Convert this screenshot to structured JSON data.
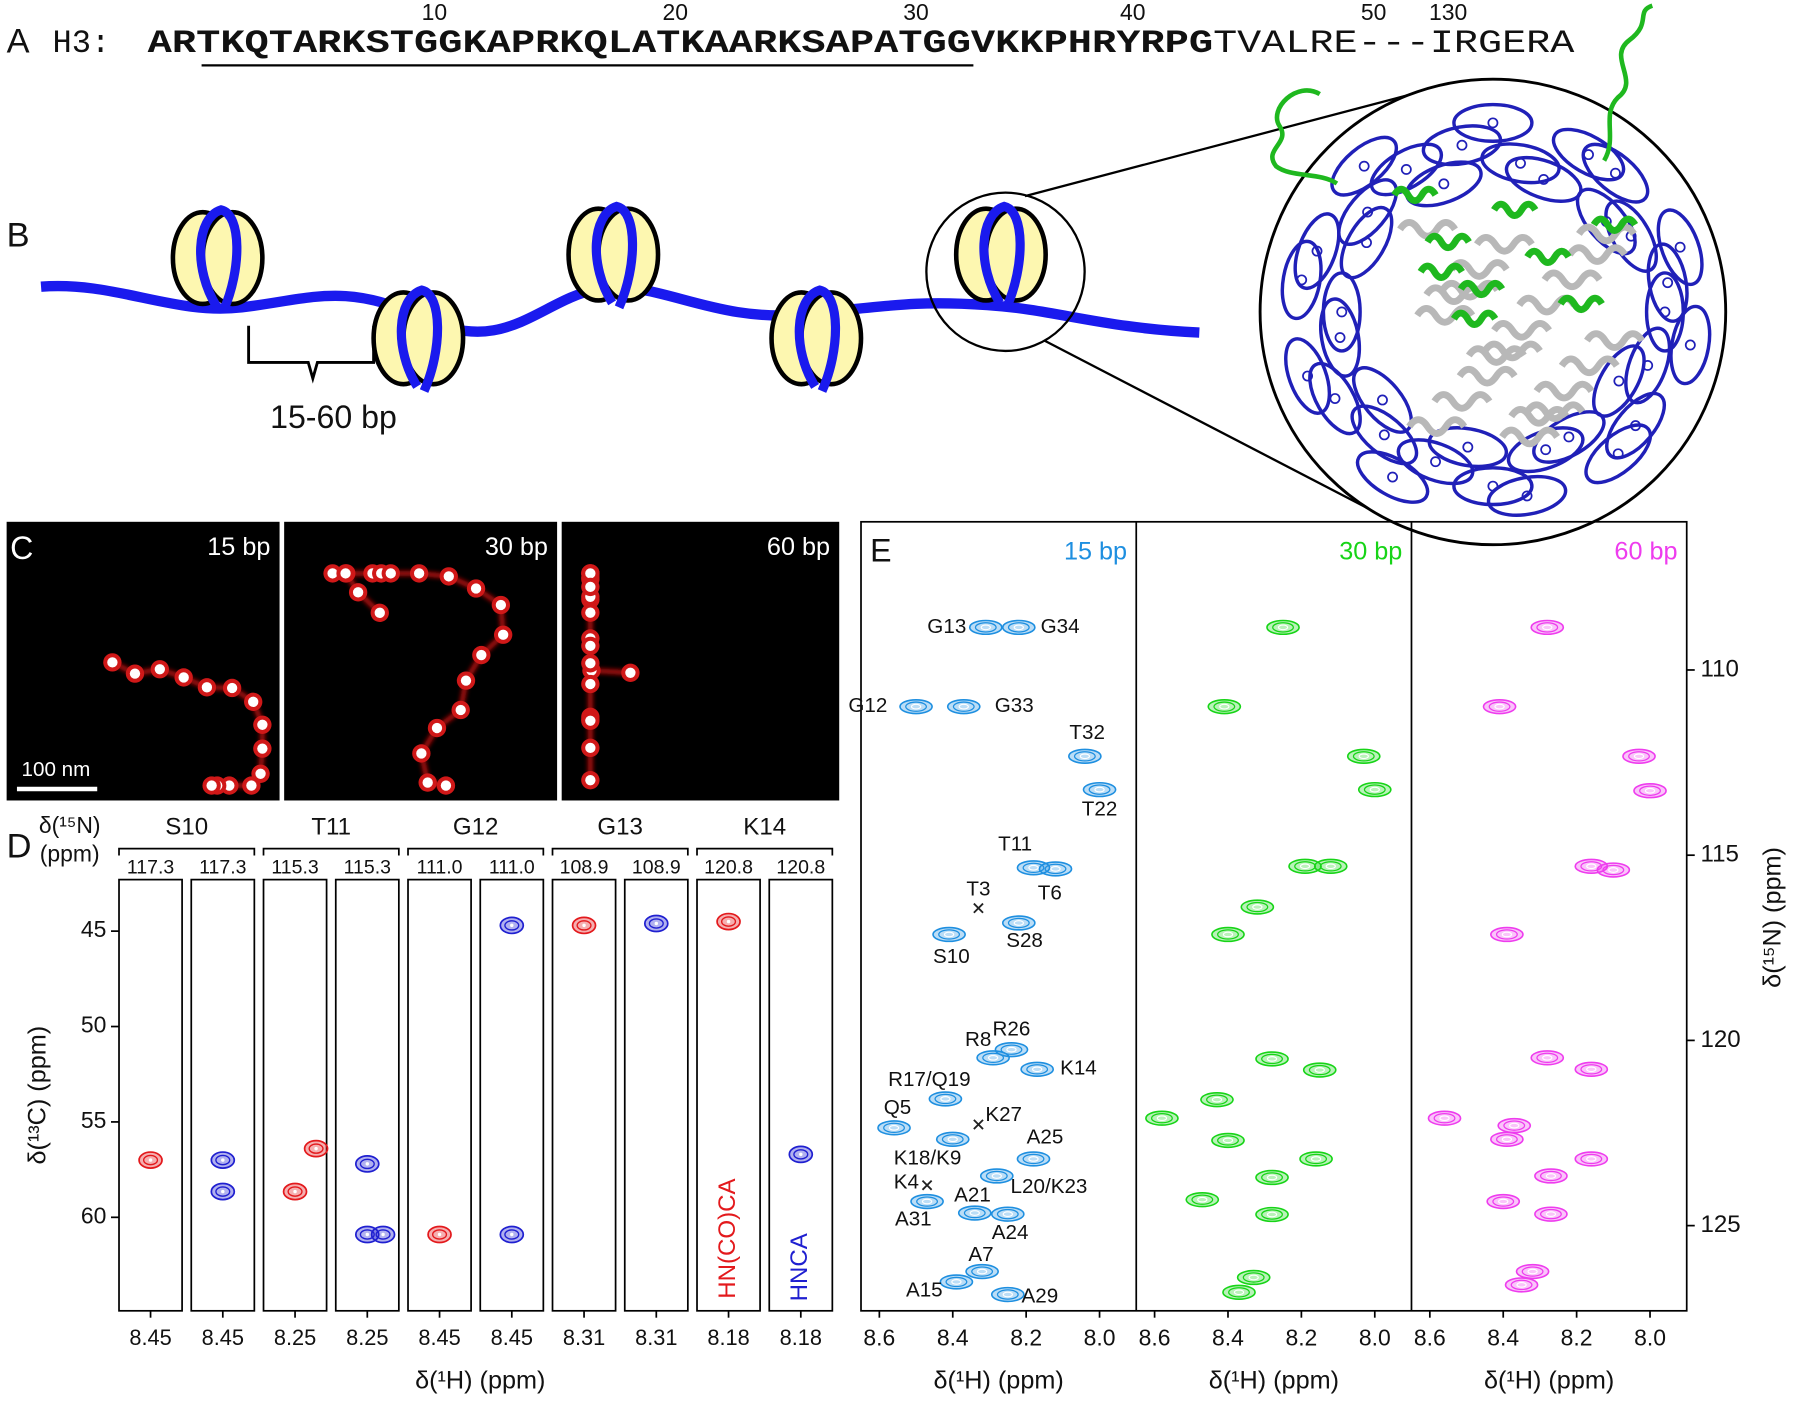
{
  "panel_a": {
    "label": "A",
    "protein": "H3:",
    "sequence_bold": "ARTKQTARKSTGGKAPRKQLATKAARKSAPATGGVKKPHRYRPG",
    "sequence_plain": "TVALRE---IRGERA",
    "residue_numbers": [
      10,
      20,
      30,
      40,
      50,
      130
    ]
  },
  "panel_b": {
    "label": "B",
    "linker_length": "15-60 bp"
  },
  "panel_c": {
    "label": "C",
    "images": [
      "15 bp",
      "30 bp",
      "60 bp"
    ],
    "scale_bar": "100 nm"
  },
  "panel_d": {
    "label": "D",
    "n_label": "δ(¹⁵N)",
    "n_unit": "(ppm)",
    "y_label": "δ(¹³C) (ppm)",
    "x_label": "δ(¹H) (ppm)",
    "ylim": [
      42.3,
      64.9
    ],
    "yticks": [
      45,
      50,
      55,
      60
    ],
    "experiments": [
      {
        "name": "HN(CO)CA",
        "color": "#e3191c"
      },
      {
        "name": "HNCA",
        "color": "#1f1fd0"
      }
    ],
    "residues": [
      {
        "name": "S10",
        "strips": [
          {
            "n": 117.3,
            "h": 8.45,
            "xlim": [
              8.51,
              8.39
            ],
            "peaks": [
              {
                "h": 8.45,
                "c": 57.0
              }
            ]
          },
          {
            "n": 117.3,
            "h": 8.45,
            "xlim": [
              8.51,
              8.39
            ],
            "peaks": [
              {
                "h": 8.45,
                "c": 58.65
              },
              {
                "h": 8.45,
                "c": 57.0
              }
            ]
          }
        ]
      },
      {
        "name": "T11",
        "strips": [
          {
            "n": 115.3,
            "h": 8.25,
            "xlim": [
              8.31,
              8.19
            ],
            "peaks": [
              {
                "h": 8.25,
                "c": 58.65
              },
              {
                "h": 8.21,
                "c": 56.4
              }
            ]
          },
          {
            "n": 115.3,
            "h": 8.25,
            "xlim": [
              8.31,
              8.19
            ],
            "peaks": [
              {
                "h": 8.25,
                "c": 60.9
              },
              {
                "h": 8.22,
                "c": 60.9
              },
              {
                "h": 8.25,
                "c": 57.2
              }
            ]
          }
        ]
      },
      {
        "name": "G12",
        "strips": [
          {
            "n": {
              "value": 111,
              "label": "111.0"
            },
            "h": 8.45,
            "xlim": [
              8.51,
              8.39
            ],
            "peaks": [
              {
                "h": 8.45,
                "c": 60.9
              }
            ]
          },
          {
            "n": {
              "value": 111,
              "label": "111.0"
            },
            "h": 8.45,
            "xlim": [
              8.51,
              8.39
            ],
            "peaks": [
              {
                "h": 8.45,
                "c": 44.7
              },
              {
                "h": 8.45,
                "c": 60.9
              }
            ]
          }
        ]
      },
      {
        "name": "G13",
        "strips": [
          {
            "n": 108.9,
            "h": 8.31,
            "xlim": [
              8.37,
              8.25
            ],
            "peaks": [
              {
                "h": 8.31,
                "c": 44.7
              }
            ]
          },
          {
            "n": 108.9,
            "h": 8.31,
            "xlim": [
              8.37,
              8.25
            ],
            "peaks": [
              {
                "h": 8.31,
                "c": 44.6
              }
            ]
          }
        ]
      },
      {
        "name": "K14",
        "strips": [
          {
            "n": 120.8,
            "h": 8.18,
            "xlim": [
              8.24,
              8.12
            ],
            "peaks": [
              {
                "h": 8.18,
                "c": 44.5
              }
            ]
          },
          {
            "n": 120.8,
            "h": 8.18,
            "xlim": [
              8.24,
              8.12
            ],
            "peaks": [
              {
                "h": 8.18,
                "c": 56.7
              }
            ]
          }
        ]
      }
    ]
  },
  "panel_e": {
    "label": "E",
    "x_label": "δ(¹H) (ppm)",
    "y_label": "δ(¹⁵N) (ppm)",
    "xlim": [
      8.65,
      7.9
    ],
    "xticks": [
      8.6,
      8.4,
      8.2,
      {
        "value": 8,
        "label": "8.0"
      }
    ],
    "ylim": [
      106,
      127.3
    ],
    "yticks": [
      110,
      115,
      120,
      125
    ],
    "spectra": [
      {
        "name": "15 bp",
        "color": "#1e8fe0",
        "peaks": [
          {
            "label": "G13",
            "h": 8.31,
            "n": 108.85
          },
          {
            "label": "G34",
            "h": 8.22,
            "n": 108.85
          },
          {
            "label": "G12",
            "h": 8.5,
            "n": 110.99
          },
          {
            "label": "G33",
            "h": 8.37,
            "n": 110.99
          },
          {
            "label": "T32",
            "h": 8.04,
            "n": 112.33
          },
          {
            "label": "T22",
            "h": 8.0,
            "n": 113.23
          },
          {
            "label": "T11",
            "h": 8.18,
            "n": 115.34
          },
          {
            "label": "T6",
            "h": 8.12,
            "n": 115.37
          },
          {
            "label": "T3",
            "h": 8.33,
            "n": 116.43,
            "marker": "x"
          },
          {
            "label": "S28",
            "h": 8.22,
            "n": 116.83
          },
          {
            "label": "S10",
            "h": 8.41,
            "n": 117.14
          },
          {
            "label": "R8",
            "h": 8.29,
            "n": 120.47
          },
          {
            "label": "R26",
            "h": 8.24,
            "n": 120.25
          },
          {
            "label": "K14",
            "h": 8.17,
            "n": 120.78
          },
          {
            "label": "R17/Q19",
            "h": 8.42,
            "n": 121.58
          },
          {
            "label": "Q5",
            "h": 8.56,
            "n": 122.36
          },
          {
            "label": "K27",
            "h": 8.33,
            "n": 122.27,
            "marker": "x"
          },
          {
            "label": "K18/K9",
            "h": 8.4,
            "n": 122.67
          },
          {
            "label": "A25",
            "h": 8.18,
            "n": 123.2
          },
          {
            "label": "L20/K23",
            "h": 8.28,
            "n": 123.66
          },
          {
            "label": "K4",
            "h": 8.47,
            "n": 123.91,
            "marker": "x"
          },
          {
            "label": "A31",
            "h": 8.47,
            "n": 124.35
          },
          {
            "label": "A21",
            "h": 8.34,
            "n": 124.66
          },
          {
            "label": "A24",
            "h": 8.25,
            "n": 124.69
          },
          {
            "label": "A7",
            "h": 8.32,
            "n": 126.24
          },
          {
            "label": "A15",
            "h": 8.39,
            "n": 126.52
          },
          {
            "label": "A29",
            "h": 8.25,
            "n": 126.86
          }
        ]
      },
      {
        "name": "30 bp",
        "color": "#17d417",
        "peaks": [
          {
            "h": 8.25,
            "n": 108.85
          },
          {
            "h": 8.41,
            "n": 110.99
          },
          {
            "h": 8.03,
            "n": 112.33
          },
          {
            "h": 8.0,
            "n": 113.23
          },
          {
            "h": 8.19,
            "n": 115.3
          },
          {
            "h": 8.12,
            "n": 115.3
          },
          {
            "h": 8.32,
            "n": 116.4
          },
          {
            "h": 8.4,
            "n": 117.14
          },
          {
            "h": 8.28,
            "n": 120.5
          },
          {
            "h": 8.15,
            "n": 120.8
          },
          {
            "h": 8.43,
            "n": 121.6
          },
          {
            "h": 8.58,
            "n": 122.1
          },
          {
            "h": 8.4,
            "n": 122.7
          },
          {
            "h": 8.16,
            "n": 123.2
          },
          {
            "h": 8.28,
            "n": 123.7
          },
          {
            "h": 8.47,
            "n": 124.3
          },
          {
            "h": 8.28,
            "n": 124.7
          },
          {
            "h": 8.33,
            "n": 126.4
          },
          {
            "h": 8.37,
            "n": 126.8
          }
        ]
      },
      {
        "name": "60 bp",
        "color": "#ee3cee",
        "peaks": [
          {
            "h": 8.28,
            "n": 108.85
          },
          {
            "h": 8.41,
            "n": 110.99
          },
          {
            "h": 8.03,
            "n": 112.33
          },
          {
            "h": 8.0,
            "n": 113.26
          },
          {
            "h": 8.16,
            "n": 115.3
          },
          {
            "h": 8.1,
            "n": 115.4
          },
          {
            "h": 8.39,
            "n": 117.14
          },
          {
            "h": 8.28,
            "n": 120.47
          },
          {
            "h": 8.16,
            "n": 120.78
          },
          {
            "h": 8.56,
            "n": 122.1
          },
          {
            "h": 8.37,
            "n": 122.3
          },
          {
            "h": 8.39,
            "n": 122.67
          },
          {
            "h": 8.16,
            "n": 123.2
          },
          {
            "h": 8.27,
            "n": 123.66
          },
          {
            "h": 8.4,
            "n": 124.35
          },
          {
            "h": 8.27,
            "n": 124.69
          },
          {
            "h": 8.32,
            "n": 126.24
          },
          {
            "h": 8.35,
            "n": 126.6
          }
        ]
      }
    ]
  }
}
